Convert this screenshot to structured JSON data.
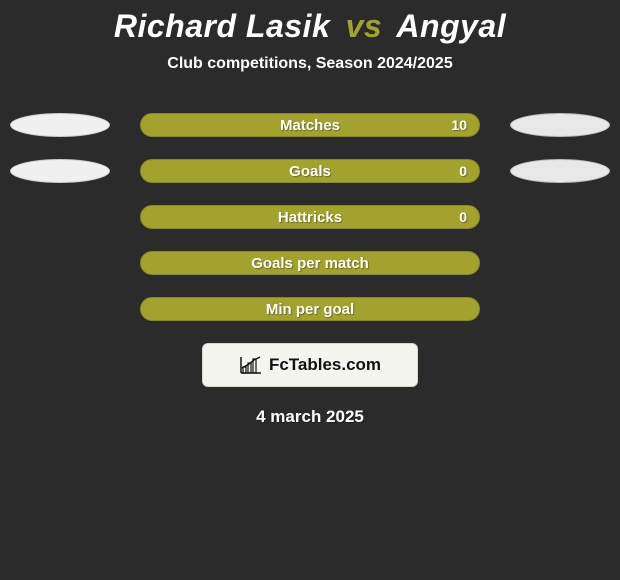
{
  "title": {
    "player1": "Richard Lasik",
    "vs": "vs",
    "player2": "Angyal",
    "player1_color": "#ffffff",
    "vs_color": "#a4a22f",
    "player2_color": "#ffffff"
  },
  "subtitle": "Club competitions, Season 2024/2025",
  "background_color": "#2b2b2b",
  "ellipse_shown": [
    true,
    true,
    false,
    false,
    false
  ],
  "ellipse_left_fill": "#f0f0f0",
  "ellipse_right_fill": "#e8e8e8",
  "ellipse_left_border": "#cccccc",
  "ellipse_right_border": "#bbbbbb",
  "bar_fill": "#a4a22f",
  "bar_border": "#8a8825",
  "bar_label_color": "#ffffff",
  "bar_value_color": "#ffffff",
  "stats": [
    {
      "label": "Matches",
      "value": "10",
      "show_value": true
    },
    {
      "label": "Goals",
      "value": "0",
      "show_value": true
    },
    {
      "label": "Hattricks",
      "value": "0",
      "show_value": true
    },
    {
      "label": "Goals per match",
      "value": "",
      "show_value": false
    },
    {
      "label": "Min per goal",
      "value": "",
      "show_value": false
    }
  ],
  "badge": {
    "text": "FcTables.com",
    "bg": "#f5f5f0",
    "fg": "#111111",
    "border": "#d8d8c8"
  },
  "date": "4 march 2025",
  "date_color": "#ffffff"
}
